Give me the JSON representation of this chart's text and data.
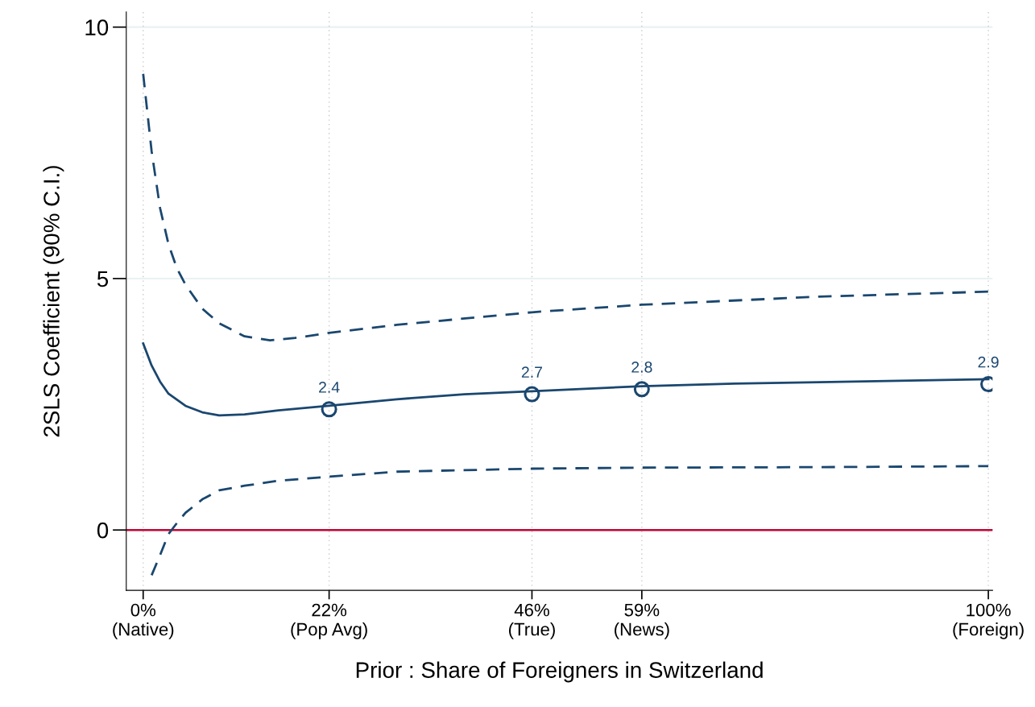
{
  "chart_data": {
    "type": "line",
    "xlabel": "Prior : Share of Foreigners in Switzerland",
    "ylabel": "2SLS Coefficient (90% C.I.)",
    "xlim": [
      -2,
      100.5
    ],
    "ylim": [
      -1.2,
      10.3
    ],
    "xticks": [
      {
        "value": 0,
        "label": "0%\n(Native)"
      },
      {
        "value": 22,
        "label": "22%\n(Pop Avg)"
      },
      {
        "value": 46,
        "label": "46%\n(True)"
      },
      {
        "value": 59,
        "label": "59%\n(News)"
      },
      {
        "value": 100,
        "label": "100%\n(Foreign)"
      }
    ],
    "yticks": [
      0,
      5,
      10
    ],
    "grid": true,
    "legend": false,
    "ref_lines": [
      {
        "axis": "y",
        "value": 0,
        "color": "#c10534",
        "line_style": "solid"
      }
    ],
    "series": [
      {
        "color": "#1a476f",
        "line_style": "solid",
        "marker": "none",
        "x": [
          0,
          1,
          2,
          3,
          5,
          7,
          9,
          12,
          16,
          22,
          30,
          38,
          46,
          59,
          70,
          80,
          100
        ],
        "values": [
          3.71,
          3.27,
          2.95,
          2.71,
          2.47,
          2.34,
          2.28,
          2.3,
          2.38,
          2.47,
          2.6,
          2.7,
          2.76,
          2.86,
          2.91,
          2.94,
          3.0
        ]
      },
      {
        "color": "#1a476f",
        "line_style": "dashed",
        "marker": "none",
        "x": [
          0,
          1,
          2,
          3,
          4,
          5,
          7,
          9,
          12,
          15,
          18,
          22,
          30,
          46,
          59,
          80,
          100
        ],
        "values": [
          9.07,
          7.53,
          6.4,
          5.68,
          5.2,
          4.88,
          4.4,
          4.11,
          3.85,
          3.77,
          3.82,
          3.92,
          4.08,
          4.33,
          4.48,
          4.64,
          4.74
        ]
      },
      {
        "color": "#1a476f",
        "line_style": "dashed",
        "marker": "none",
        "x": [
          1,
          2,
          3,
          4,
          5,
          7,
          9,
          12,
          16,
          22,
          30,
          46,
          59,
          80,
          100
        ],
        "values": [
          -0.9,
          -0.5,
          -0.08,
          0.14,
          0.34,
          0.61,
          0.79,
          0.88,
          0.98,
          1.06,
          1.16,
          1.22,
          1.24,
          1.25,
          1.27
        ]
      },
      {
        "type": "scatter",
        "color": "#1a476f",
        "marker": "circle",
        "x": [
          22,
          46,
          59,
          100
        ],
        "values": [
          2.4,
          2.7,
          2.8,
          2.9
        ],
        "value_labels": [
          "2.4",
          "2.7",
          "2.8",
          "2.9"
        ]
      }
    ]
  }
}
